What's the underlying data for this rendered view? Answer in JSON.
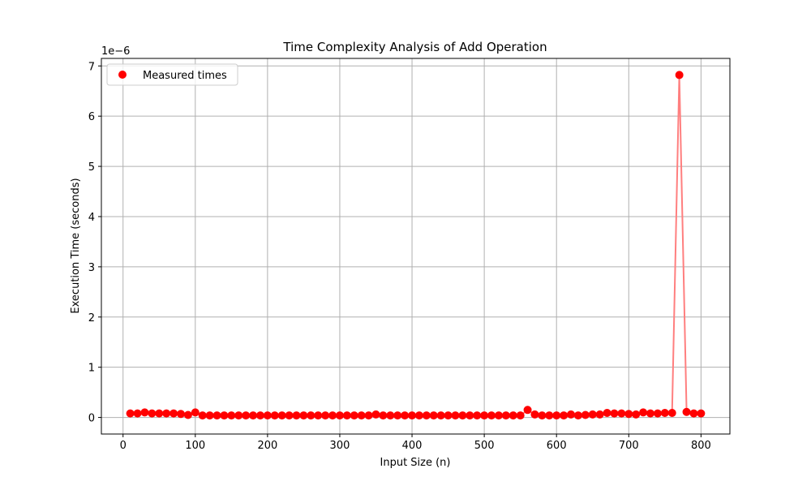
{
  "chart_data": {
    "type": "scatter",
    "title": "Time Complexity Analysis of Add Operation",
    "xlabel": "Input Size (n)",
    "ylabel": "Execution Time (seconds)",
    "y_offset_label": "1e−6",
    "y_scale_factor": 1e-06,
    "xlim": [
      -30,
      840
    ],
    "ylim": [
      -0.33,
      7.15
    ],
    "xticks": [
      0,
      100,
      200,
      300,
      400,
      500,
      600,
      700,
      800
    ],
    "yticks": [
      0,
      1,
      2,
      3,
      4,
      5,
      6,
      7
    ],
    "grid": true,
    "legend_position": "upper-left",
    "colors": {
      "points": "#ff0000",
      "line": "#ff7f7f",
      "grid": "#b0b0b0"
    },
    "series": [
      {
        "name": "Measured times",
        "x": [
          10,
          20,
          30,
          40,
          50,
          60,
          70,
          80,
          90,
          100,
          110,
          120,
          130,
          140,
          150,
          160,
          170,
          180,
          190,
          200,
          210,
          220,
          230,
          240,
          250,
          260,
          270,
          280,
          290,
          300,
          310,
          320,
          330,
          340,
          350,
          360,
          370,
          380,
          390,
          400,
          410,
          420,
          430,
          440,
          450,
          460,
          470,
          480,
          490,
          500,
          510,
          520,
          530,
          540,
          550,
          560,
          570,
          580,
          590,
          600,
          610,
          620,
          630,
          640,
          650,
          660,
          670,
          680,
          690,
          700,
          710,
          720,
          730,
          740,
          750,
          760,
          770,
          780,
          790,
          800
        ],
        "y": [
          0.08,
          0.08,
          0.1,
          0.08,
          0.08,
          0.08,
          0.08,
          0.07,
          0.05,
          0.1,
          0.04,
          0.04,
          0.04,
          0.04,
          0.04,
          0.04,
          0.04,
          0.04,
          0.04,
          0.04,
          0.04,
          0.04,
          0.04,
          0.04,
          0.04,
          0.04,
          0.04,
          0.04,
          0.04,
          0.04,
          0.04,
          0.04,
          0.04,
          0.04,
          0.06,
          0.04,
          0.04,
          0.04,
          0.04,
          0.04,
          0.04,
          0.04,
          0.04,
          0.04,
          0.04,
          0.04,
          0.04,
          0.04,
          0.04,
          0.04,
          0.04,
          0.04,
          0.04,
          0.04,
          0.04,
          0.15,
          0.06,
          0.04,
          0.04,
          0.04,
          0.04,
          0.06,
          0.04,
          0.05,
          0.06,
          0.06,
          0.09,
          0.08,
          0.08,
          0.07,
          0.06,
          0.1,
          0.08,
          0.08,
          0.09,
          0.09,
          6.82,
          0.11,
          0.08,
          0.08
        ]
      }
    ]
  }
}
